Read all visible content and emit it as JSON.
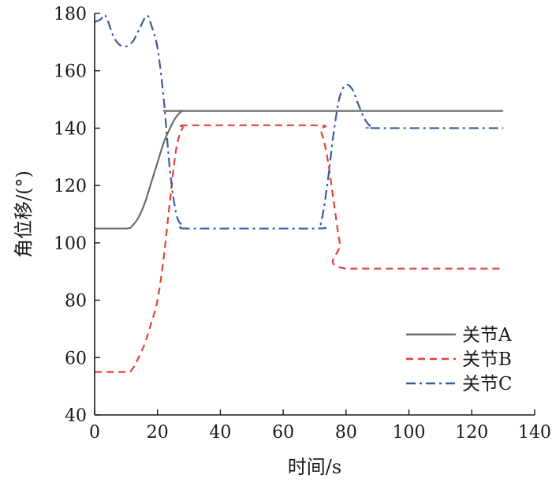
{
  "chart_data": {
    "type": "line",
    "xlabel": "时间/s",
    "ylabel": "角位移/(°)",
    "xlim": [
      0,
      140
    ],
    "ylim": [
      40,
      180
    ],
    "xticks": [
      0,
      20,
      40,
      60,
      80,
      100,
      120,
      140
    ],
    "yticks": [
      40,
      60,
      80,
      100,
      120,
      140,
      160,
      180
    ],
    "grid": false,
    "legend_position": "bottom-right",
    "series": [
      {
        "name": "关节A",
        "color": "#6b6b6b",
        "dash": "solid",
        "x": [
          0,
          10,
          12,
          14,
          16,
          18,
          20,
          22,
          24,
          26,
          28,
          30,
          130
        ],
        "y": [
          105,
          105,
          106,
          109,
          114,
          121,
          128,
          135,
          140,
          144,
          146,
          146,
          146
        ]
      },
      {
        "name": "关节B",
        "color": "#e0403a",
        "dash": "dashed",
        "x": [
          0,
          10,
          12,
          14,
          16,
          18,
          20,
          22,
          24,
          26,
          28,
          30,
          70,
          72,
          74,
          76,
          78,
          80,
          130
        ],
        "y": [
          55,
          55,
          56,
          60,
          65,
          72,
          80,
          95,
          115,
          133,
          140,
          141,
          141,
          139,
          130,
          115,
          100,
          91,
          91
        ]
      },
      {
        "name": "关节C",
        "color": "#3d5a99",
        "dash": "dashdot",
        "x": [
          0,
          2,
          3,
          4,
          6,
          8,
          10,
          12,
          14,
          16,
          17,
          18,
          20,
          22,
          24,
          26,
          28,
          30,
          70,
          72,
          74,
          76,
          78,
          80,
          82,
          84,
          86,
          88,
          90,
          130
        ],
        "y": [
          177,
          178,
          179.5,
          178,
          172,
          169,
          168.5,
          170,
          174,
          178.5,
          179,
          176,
          168,
          150,
          125,
          110,
          106,
          105,
          105,
          107,
          120,
          138,
          151,
          155,
          153.5,
          148,
          143,
          140.5,
          140,
          140
        ]
      }
    ]
  }
}
